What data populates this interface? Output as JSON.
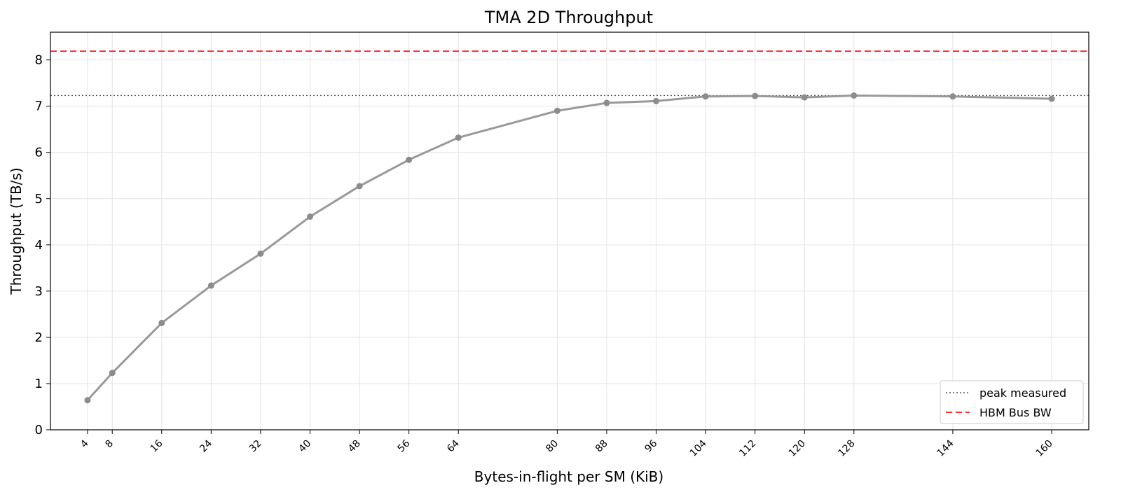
{
  "chart_data": {
    "type": "line",
    "title": "TMA 2D Throughput",
    "xlabel": "Bytes-in-flight per SM (KiB)",
    "ylabel": "Throughput (TB/s)",
    "xlim": [
      -2,
      166
    ],
    "ylim": [
      0,
      8.6
    ],
    "x_ticks": [
      4,
      8,
      16,
      24,
      32,
      40,
      48,
      56,
      64,
      80,
      88,
      96,
      104,
      112,
      120,
      128,
      144,
      160
    ],
    "y_ticks": [
      0,
      1,
      2,
      3,
      4,
      5,
      6,
      7,
      8
    ],
    "grid": true,
    "series": [
      {
        "x": [
          4,
          8,
          16,
          24,
          32,
          40,
          48,
          56,
          64,
          80,
          88,
          96,
          104,
          112,
          120,
          128,
          144,
          160
        ],
        "y": [
          0.64,
          1.23,
          2.31,
          3.12,
          3.81,
          4.61,
          5.27,
          5.84,
          6.32,
          6.9,
          7.07,
          7.11,
          7.21,
          7.22,
          7.19,
          7.23,
          7.21,
          7.16
        ],
        "color": "#999999"
      }
    ],
    "reference_lines": [
      {
        "name": "peak measured",
        "y": 7.23,
        "style": "dotted",
        "color": "#555555"
      },
      {
        "name": "HBM Bus BW",
        "y": 8.19,
        "style": "dashed",
        "color": "#ff2b2b"
      }
    ],
    "legend": {
      "position": "lower-right",
      "entries": [
        "peak measured",
        "HBM Bus BW"
      ]
    }
  }
}
